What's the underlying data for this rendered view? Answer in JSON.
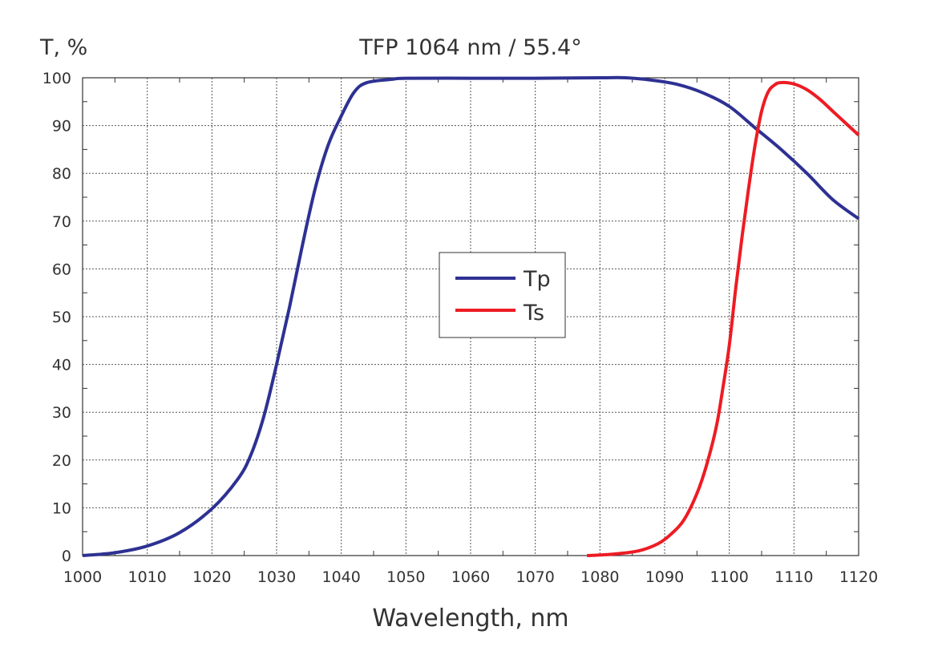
{
  "chart_data": {
    "type": "line",
    "title": "TFP 1064 nm / 55.4°",
    "xlabel": "Wavelength, nm",
    "ylabel": "T, %",
    "xlim": [
      1000,
      1120
    ],
    "ylim": [
      0,
      100
    ],
    "x_ticks": [
      "1000",
      "1010",
      "1020",
      "1030",
      "1040",
      "1050",
      "1060",
      "1070",
      "1080",
      "1090",
      "1100",
      "1110",
      "1120"
    ],
    "y_ticks": [
      "0",
      "10",
      "20",
      "30",
      "40",
      "50",
      "60",
      "70",
      "80",
      "90",
      "100"
    ],
    "grid": true,
    "legend_position": "center",
    "series": [
      {
        "name": "Tp",
        "color": "#2e3192",
        "points": [
          [
            1000,
            0
          ],
          [
            1005,
            0.6
          ],
          [
            1010,
            2
          ],
          [
            1015,
            4.8
          ],
          [
            1020,
            9.8
          ],
          [
            1024,
            16
          ],
          [
            1026,
            21
          ],
          [
            1028,
            29
          ],
          [
            1030,
            40
          ],
          [
            1032,
            52
          ],
          [
            1034,
            65
          ],
          [
            1036,
            77
          ],
          [
            1038,
            86
          ],
          [
            1040,
            92
          ],
          [
            1042,
            97
          ],
          [
            1044,
            99
          ],
          [
            1048,
            99.7
          ],
          [
            1050,
            99.9
          ],
          [
            1060,
            99.9
          ],
          [
            1070,
            99.9
          ],
          [
            1080,
            100
          ],
          [
            1084,
            100
          ],
          [
            1088,
            99.5
          ],
          [
            1092,
            98.6
          ],
          [
            1096,
            96.8
          ],
          [
            1100,
            94
          ],
          [
            1104,
            89.5
          ],
          [
            1108,
            85
          ],
          [
            1112,
            80
          ],
          [
            1116,
            74.5
          ],
          [
            1120,
            70.5
          ]
        ]
      },
      {
        "name": "Ts",
        "color": "#ed1c24",
        "points": [
          [
            1078,
            0
          ],
          [
            1082,
            0.3
          ],
          [
            1086,
            1
          ],
          [
            1089,
            2.5
          ],
          [
            1091,
            4.5
          ],
          [
            1093,
            7.5
          ],
          [
            1095,
            13
          ],
          [
            1096.5,
            19
          ],
          [
            1098,
            27
          ],
          [
            1099,
            35
          ],
          [
            1100,
            44
          ],
          [
            1101,
            56
          ],
          [
            1102,
            67
          ],
          [
            1103,
            77
          ],
          [
            1104,
            86
          ],
          [
            1105,
            93
          ],
          [
            1106,
            97
          ],
          [
            1107,
            98.5
          ],
          [
            1108,
            99
          ],
          [
            1110,
            98.7
          ],
          [
            1112,
            97.5
          ],
          [
            1114,
            95.5
          ],
          [
            1116,
            93
          ],
          [
            1118,
            90.5
          ],
          [
            1120,
            88
          ]
        ]
      }
    ]
  }
}
